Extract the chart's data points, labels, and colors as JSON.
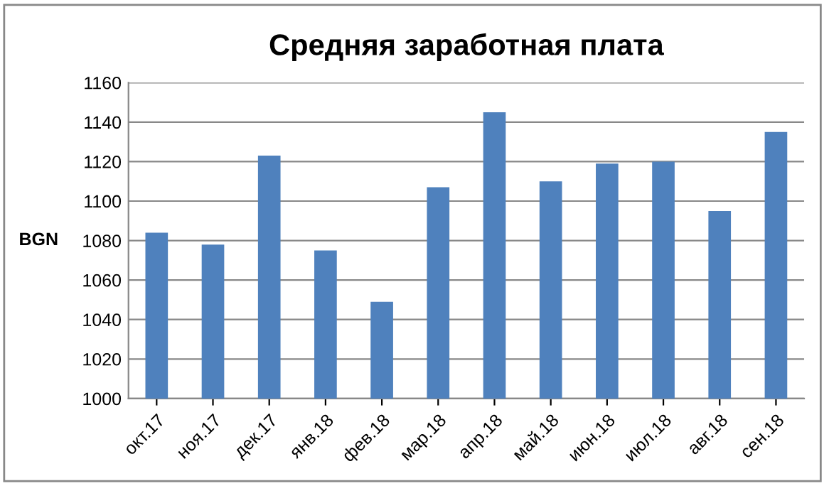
{
  "chart_data": {
    "type": "bar",
    "title": "Средняя заработная плата",
    "ylabel": "BGN",
    "categories": [
      "окт.17",
      "ноя.17",
      "дек.17",
      "янв.18",
      "фев.18",
      "мар.18",
      "апр.18",
      "май.18",
      "июн.18",
      "июл.18",
      "авг.18",
      "сен.18"
    ],
    "values": [
      1084,
      1078,
      1123,
      1075,
      1049,
      1107,
      1145,
      1110,
      1119,
      1120,
      1095,
      1135
    ],
    "color": "#4f81bd",
    "ylim": [
      1000,
      1160
    ],
    "yticks": [
      1000,
      1020,
      1040,
      1060,
      1080,
      1100,
      1120,
      1140,
      1160
    ],
    "grid": "y"
  }
}
